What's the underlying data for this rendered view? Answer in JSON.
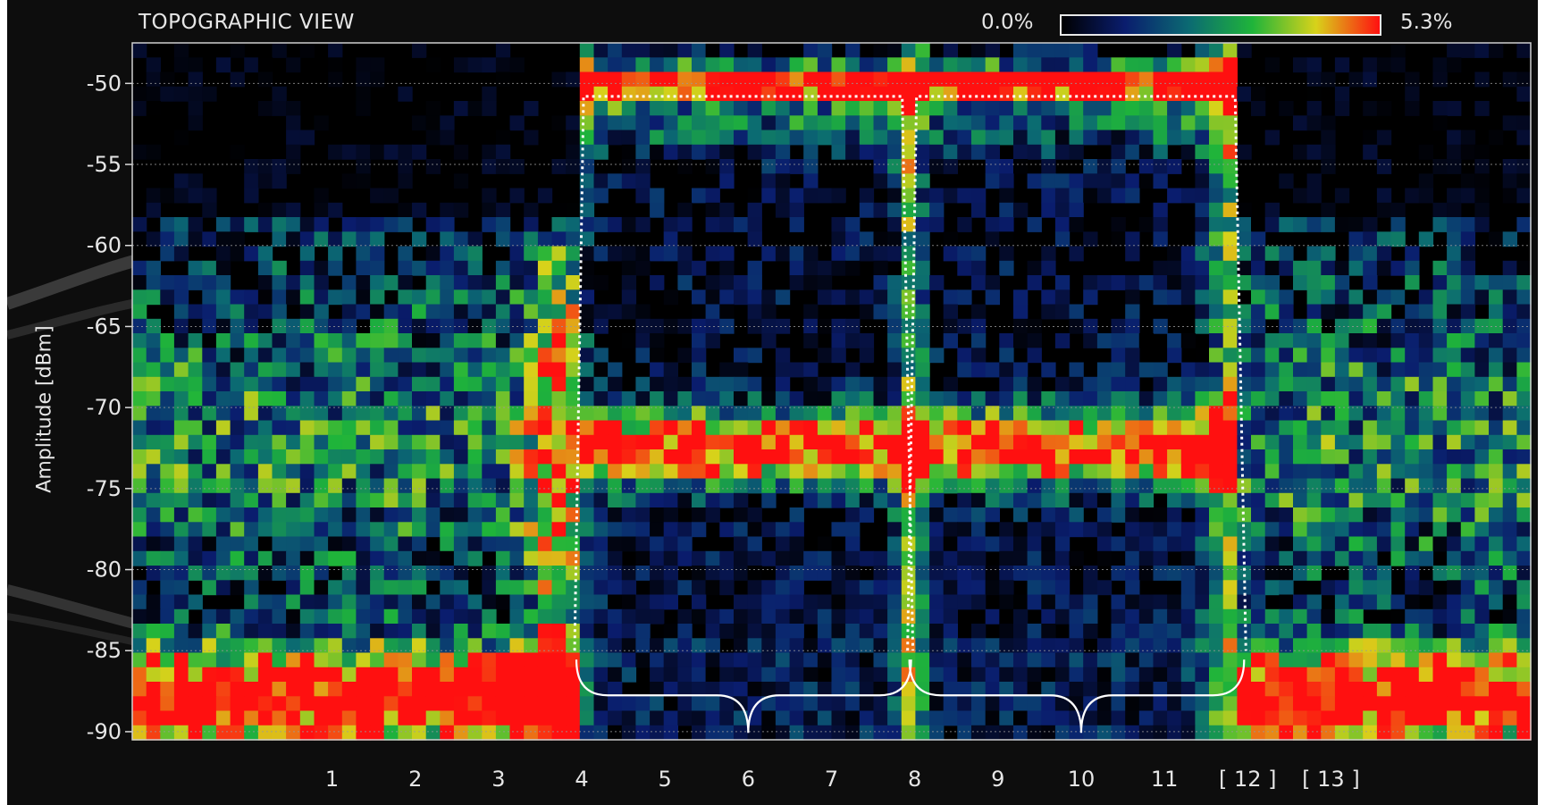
{
  "chart_data": {
    "type": "heatmap",
    "title": "TOPOGRAPHIC VIEW",
    "ylabel": "Amplitude [dBm]",
    "xlabel": "",
    "ylim": [
      -90.5,
      -47.5
    ],
    "xlim": [
      -1.4,
      15.4
    ],
    "y_ticks": [
      -50,
      -55,
      -60,
      -65,
      -70,
      -75,
      -80,
      -85,
      -90
    ],
    "x_ticks": [
      {
        "label": "1",
        "value": 1
      },
      {
        "label": "2",
        "value": 2
      },
      {
        "label": "3",
        "value": 3
      },
      {
        "label": "4",
        "value": 4
      },
      {
        "label": "5",
        "value": 5
      },
      {
        "label": "6",
        "value": 6
      },
      {
        "label": "7",
        "value": 7
      },
      {
        "label": "8",
        "value": 8
      },
      {
        "label": "9",
        "value": 9
      },
      {
        "label": "10",
        "value": 10
      },
      {
        "label": "11",
        "value": 11
      },
      {
        "label": "[ 12 ]",
        "value": 12
      },
      {
        "label": "[ 13 ]",
        "value": 13
      }
    ],
    "color_scale": {
      "min_label": "0.0%",
      "max_label": "5.3%",
      "colors": [
        "#000000",
        "#0a1d6e",
        "#0b6a72",
        "#1fb43a",
        "#d8d21a",
        "#ff1010"
      ]
    },
    "grid": true,
    "highlight_channels": [
      {
        "center_channel": 6,
        "from_channel": 4,
        "to_channel": 8,
        "top_dbm": -50.8,
        "bottom_dbm": -85
      },
      {
        "center_channel": 10,
        "from_channel": 8,
        "to_channel": 12,
        "top_dbm": -50.8,
        "bottom_dbm": -85
      }
    ]
  }
}
